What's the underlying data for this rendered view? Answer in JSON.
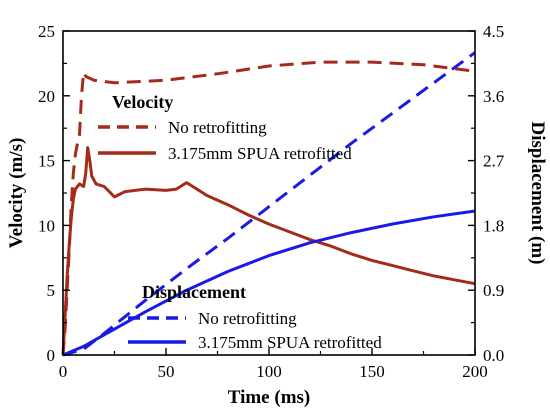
{
  "chart_data": {
    "type": "line",
    "xlabel": "Time (ms)",
    "ylabel_left": "Velocity (m/s)",
    "ylabel_right": "Displacement (m)",
    "xlim": [
      0,
      200
    ],
    "ylim_left": [
      0,
      25
    ],
    "ylim_right": [
      0,
      4.5
    ],
    "x_ticks": [
      "0",
      "50",
      "100",
      "150",
      "200"
    ],
    "y_left_ticks": [
      "0",
      "5",
      "10",
      "15",
      "20",
      "25"
    ],
    "y_right_ticks": [
      "0.0",
      "0.9",
      "1.8",
      "2.7",
      "3.6",
      "4.5"
    ],
    "grid": false,
    "legend_groups": [
      {
        "title": "Velocity",
        "entries": [
          {
            "label": "No retrofitting",
            "style": "dashed",
            "color": "#a52a1a"
          },
          {
            "label": "3.175mm SPUA retrofitted",
            "style": "solid",
            "color": "#a52a1a"
          }
        ]
      },
      {
        "title": "Displacement",
        "entries": [
          {
            "label": "No retrofitting",
            "style": "dashed",
            "color": "#1a1ae6"
          },
          {
            "label": "3.175mm SPUA retrofitted",
            "style": "solid",
            "color": "#1a1ae6"
          }
        ]
      }
    ],
    "series": [
      {
        "axis": "left",
        "style": "dashed",
        "color": "#a52a1a",
        "x": [
          0,
          1,
          2,
          3,
          4,
          5,
          6,
          7,
          8,
          9,
          10,
          11,
          15,
          25,
          50,
          75,
          100,
          125,
          150,
          175,
          200
        ],
        "y": [
          0,
          2,
          5,
          8,
          11.5,
          14,
          15.5,
          16.3,
          17,
          20,
          21.8,
          21.5,
          21.2,
          21.0,
          21.2,
          21.7,
          22.3,
          22.6,
          22.6,
          22.4,
          21.9
        ]
      },
      {
        "axis": "left",
        "style": "solid",
        "color": "#a52a1a",
        "x": [
          0,
          1,
          2,
          3,
          4,
          5,
          6,
          8,
          10,
          11,
          12,
          13,
          14,
          16,
          20,
          25,
          30,
          40,
          50,
          55,
          60,
          65,
          70,
          80,
          90,
          100,
          110,
          120,
          130,
          140,
          150,
          160,
          170,
          180,
          190,
          200
        ],
        "y": [
          0,
          3,
          6,
          8.5,
          10.5,
          12.0,
          12.8,
          13.2,
          13.0,
          14.0,
          16.0,
          15.0,
          13.8,
          13.2,
          13.0,
          12.2,
          12.6,
          12.8,
          12.7,
          12.8,
          13.3,
          12.8,
          12.3,
          11.6,
          10.8,
          10.1,
          9.5,
          8.9,
          8.4,
          7.8,
          7.3,
          6.9,
          6.5,
          6.1,
          5.8,
          5.5
        ]
      },
      {
        "axis": "right",
        "style": "dashed",
        "color": "#1a1ae6",
        "x": [
          0,
          10,
          20,
          40,
          60,
          80,
          100,
          120,
          140,
          160,
          180,
          200
        ],
        "y": [
          0,
          0.08,
          0.3,
          0.76,
          1.2,
          1.62,
          2.06,
          2.5,
          2.94,
          3.36,
          3.78,
          4.2
        ]
      },
      {
        "axis": "right",
        "style": "solid",
        "color": "#1a1ae6",
        "x": [
          0,
          10,
          20,
          40,
          60,
          80,
          100,
          120,
          140,
          160,
          180,
          200
        ],
        "y": [
          0,
          0.12,
          0.28,
          0.6,
          0.9,
          1.16,
          1.38,
          1.56,
          1.7,
          1.82,
          1.92,
          2.0
        ]
      }
    ]
  }
}
